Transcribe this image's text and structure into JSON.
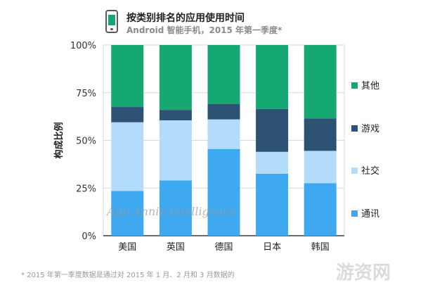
{
  "header": {
    "title": "按类别排名的应用使用时间",
    "subtitle": "Android 智能手机，2015 年第一季度*"
  },
  "chart_data": {
    "type": "bar",
    "stacked": true,
    "categories": [
      "美国",
      "英国",
      "德国",
      "日本",
      "韩国"
    ],
    "ylabel": "构成比例",
    "ylim": [
      0,
      100
    ],
    "yticks": [
      "0%",
      "25%",
      "50%",
      "75%",
      "100%"
    ],
    "legend_position": "right",
    "series": [
      {
        "name": "通讯",
        "color": "#3ea8f0",
        "values": [
          23.5,
          29,
          45.5,
          32.5,
          27.5
        ]
      },
      {
        "name": "社交",
        "color": "#b3dcfa",
        "values": [
          36,
          31.5,
          15.5,
          11.5,
          17
        ]
      },
      {
        "name": "游戏",
        "color": "#2e5274",
        "values": [
          8,
          5.5,
          8,
          22.5,
          17
        ]
      },
      {
        "name": "其他",
        "color": "#16a873",
        "values": [
          32.5,
          34,
          31,
          33.5,
          38.5
        ]
      }
    ]
  },
  "watermark_text": "App Annie intelligence",
  "footnote": "* 2015 年第一季度数据是通过对 2015 年 1 月、2 月和 3 月数据的",
  "corner_watermark": "游资网"
}
